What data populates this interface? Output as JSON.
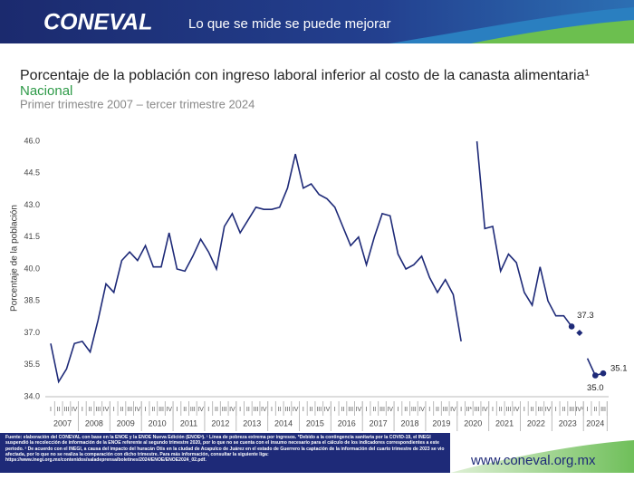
{
  "header": {
    "logo": "CONEVAL",
    "slogan": "Lo que se mide se puede mejorar"
  },
  "chart_data": {
    "type": "line",
    "title": "Porcentaje de la población con ingreso laboral inferior al costo de la canasta alimentaria¹",
    "subtitle": "Nacional",
    "period": "Primer trimestre 2007 – tercer trimestre 2024",
    "y_label": "Porcentaje de la población",
    "years": [
      "2007",
      "2008",
      "2009",
      "2010",
      "2011",
      "2012",
      "2013",
      "2014",
      "2015",
      "2016",
      "2017",
      "2018",
      "2019",
      "2020",
      "2021",
      "2022",
      "2023",
      "2024"
    ],
    "categories": [
      "I",
      "II",
      "III",
      "IV",
      "I",
      "II",
      "III",
      "IV",
      "I",
      "II",
      "III",
      "IV",
      "I",
      "II",
      "III",
      "IV",
      "I",
      "II",
      "III",
      "IV",
      "I",
      "II",
      "III",
      "IV",
      "I",
      "II",
      "III",
      "IV",
      "I",
      "II",
      "III",
      "IV",
      "I",
      "II",
      "III",
      "IV",
      "I",
      "II",
      "III",
      "IV",
      "I",
      "II",
      "III",
      "IV",
      "I",
      "II",
      "III",
      "IV",
      "I",
      "II",
      "III",
      "IV",
      "I",
      "II*",
      "III",
      "IV",
      "I",
      "II",
      "III",
      "IV",
      "I",
      "II",
      "III",
      "IV",
      "I",
      "II",
      "III",
      "IV²",
      "I",
      "II",
      "III"
    ],
    "series": [
      {
        "color": "#1e2a78",
        "values": [
          36.5,
          34.7,
          35.3,
          36.5,
          36.6,
          36.1,
          37.6,
          39.3,
          38.9,
          40.4,
          40.8,
          40.4,
          41.1,
          40.1,
          40.1,
          41.7,
          40.0,
          39.9,
          40.6,
          41.4,
          40.8,
          40.0,
          42.0,
          42.6,
          41.7,
          42.3,
          42.9,
          42.8,
          42.8,
          42.9,
          43.8,
          45.4,
          43.8,
          44.0,
          43.5,
          43.3,
          42.9,
          42.0,
          41.1,
          41.5,
          40.2,
          41.5,
          42.6,
          42.5,
          40.7,
          40.0,
          40.2,
          40.6,
          39.6,
          38.9,
          39.5,
          38.8,
          36.6,
          null,
          46.0,
          41.9,
          42.0,
          39.9,
          40.7,
          40.3,
          38.9,
          38.3,
          40.1,
          38.5,
          37.8,
          37.8,
          37.3,
          null,
          35.8,
          35.0,
          35.1
        ],
        "value_labels": [
          null,
          null,
          null,
          null,
          null,
          null,
          null,
          null,
          null,
          null,
          null,
          null,
          null,
          null,
          null,
          null,
          null,
          null,
          null,
          null,
          null,
          null,
          null,
          null,
          null,
          null,
          null,
          null,
          null,
          null,
          null,
          null,
          null,
          null,
          null,
          null,
          null,
          null,
          null,
          null,
          null,
          null,
          null,
          null,
          null,
          null,
          null,
          null,
          null,
          null,
          null,
          null,
          null,
          null,
          null,
          null,
          null,
          null,
          null,
          null,
          null,
          null,
          null,
          null,
          null,
          null,
          "37.3",
          null,
          null,
          "35.0",
          "35.1"
        ]
      },
      {
        "color": "#1e2a78",
        "marker": "diamond",
        "values": [
          null,
          null,
          null,
          null,
          null,
          null,
          null,
          null,
          null,
          null,
          null,
          null,
          null,
          null,
          null,
          null,
          null,
          null,
          null,
          null,
          null,
          null,
          null,
          null,
          null,
          null,
          null,
          null,
          null,
          null,
          null,
          null,
          null,
          null,
          null,
          null,
          null,
          null,
          null,
          null,
          null,
          null,
          null,
          null,
          null,
          null,
          null,
          null,
          null,
          null,
          null,
          null,
          null,
          null,
          null,
          null,
          null,
          null,
          null,
          null,
          null,
          null,
          null,
          null,
          null,
          null,
          null,
          37.0,
          null,
          null,
          null
        ]
      }
    ],
    "ylim": [
      34,
      46
    ],
    "yticks": [
      {
        "value": 34,
        "label": "34.0"
      },
      35.5,
      {
        "value": 37,
        "label": "37.0"
      },
      38.5,
      {
        "value": 40,
        "label": "40.0"
      },
      41.5,
      {
        "value": 43,
        "label": "43.0"
      },
      44.5,
      {
        "value": 46,
        "label": "46.0"
      }
    ],
    "grid": false
  },
  "footer": {
    "note": "Fuente: elaboración del CONEVAL con base en la ENOE y la ENOE Nueva Edición (ENOEᴺ). ¹ Línea de pobreza extrema por ingresos. *Debido a la contingencia sanitaria por la COVID-19, el INEGI suspendió la recolección de información de la ENOE referente al segundo trimestre 2020, por lo que no se cuenta con el insumo necesario para el cálculo de los indicadores correspondientes a este periodo. ² De acuerdo con el INEGI, a causa del impacto del huracán Otis en la ciudad de Acapulco de Juárez en el estado de Guerrero la captación de la información del cuarto trimestre de 2023 se vio afectada, por lo que no se realiza la comparación con dicho trimestre. Para más información, consultar la siguiente liga: https://www.inegi.org.mx/contenidos/saladeprensa/boletines/2024/ENOE/ENOE2024_02.pdf.",
    "url": "www.coneval.org.mx"
  }
}
